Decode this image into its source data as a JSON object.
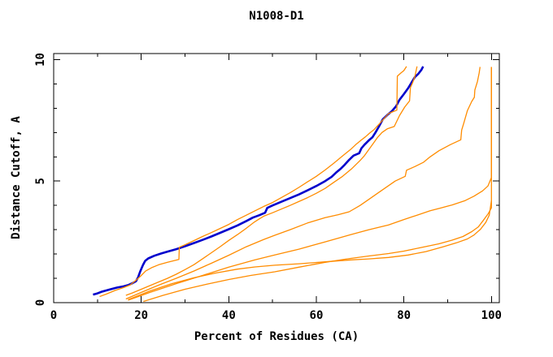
{
  "title": "N1008-D1",
  "colors": {
    "background": "#ffffff",
    "axis": "#000000",
    "highlight_series": "#0000cc",
    "other_series": "#ff8c00"
  },
  "axes": {
    "x": {
      "label": "Percent of Residues (CA)",
      "major_ticks": [
        0,
        20,
        40,
        60,
        80,
        100
      ],
      "major_tick_labels": [
        "0",
        "20",
        "40",
        "60",
        "80",
        "100"
      ],
      "minor_ticks": [
        10,
        30,
        50,
        70,
        90
      ],
      "range": [
        0,
        101.8
      ]
    },
    "y": {
      "label": "Distance Cutoff, A",
      "major_ticks": [
        0,
        5,
        10
      ],
      "major_tick_labels": [
        "0",
        "5",
        "10"
      ],
      "minor_ticks": [
        1,
        2,
        3,
        4,
        6,
        7,
        8,
        9
      ],
      "range": [
        0,
        10.25
      ]
    }
  },
  "chart_data": {
    "type": "line",
    "title": "N1008-D1",
    "xlabel": "Percent of Residues (CA)",
    "ylabel": "Distance Cutoff, A",
    "xlim": [
      0,
      101.8
    ],
    "ylim": [
      0,
      10.25
    ],
    "grid": false,
    "legend": "none",
    "series": [
      {
        "id": "highlighted-model",
        "color": "#0000cc",
        "width": 2.6,
        "points": [
          [
            9,
            0.33
          ],
          [
            10,
            0.38
          ],
          [
            11,
            0.45
          ],
          [
            12,
            0.5
          ],
          [
            13,
            0.55
          ],
          [
            14.5,
            0.62
          ],
          [
            16,
            0.67
          ],
          [
            17,
            0.72
          ],
          [
            18,
            0.8
          ],
          [
            18.8,
            0.88
          ],
          [
            19.3,
            1.05
          ],
          [
            19.8,
            1.3
          ],
          [
            20.4,
            1.55
          ],
          [
            20.9,
            1.72
          ],
          [
            21.6,
            1.82
          ],
          [
            23,
            1.93
          ],
          [
            24.5,
            2.02
          ],
          [
            26,
            2.1
          ],
          [
            28,
            2.2
          ],
          [
            30,
            2.32
          ],
          [
            32,
            2.45
          ],
          [
            34,
            2.58
          ],
          [
            36,
            2.72
          ],
          [
            38,
            2.87
          ],
          [
            40,
            3.02
          ],
          [
            42,
            3.18
          ],
          [
            44,
            3.36
          ],
          [
            45.5,
            3.5
          ],
          [
            47,
            3.6
          ],
          [
            48.3,
            3.7
          ],
          [
            48.8,
            3.9
          ],
          [
            50,
            4.0
          ],
          [
            52,
            4.15
          ],
          [
            54,
            4.3
          ],
          [
            56,
            4.45
          ],
          [
            58,
            4.62
          ],
          [
            60,
            4.8
          ],
          [
            62,
            5.0
          ],
          [
            63.5,
            5.18
          ],
          [
            64.5,
            5.35
          ],
          [
            65.5,
            5.5
          ],
          [
            66.5,
            5.68
          ],
          [
            67.5,
            5.88
          ],
          [
            68.5,
            6.05
          ],
          [
            69.8,
            6.15
          ],
          [
            70.3,
            6.35
          ],
          [
            71,
            6.5
          ],
          [
            72,
            6.68
          ],
          [
            72.8,
            6.8
          ],
          [
            73.5,
            7.0
          ],
          [
            74.3,
            7.25
          ],
          [
            75.2,
            7.55
          ],
          [
            76.2,
            7.72
          ],
          [
            77.2,
            7.87
          ],
          [
            78.2,
            8.08
          ],
          [
            79,
            8.35
          ],
          [
            80,
            8.58
          ],
          [
            81,
            8.83
          ],
          [
            81.8,
            9.07
          ],
          [
            82.5,
            9.28
          ],
          [
            83.3,
            9.42
          ],
          [
            84,
            9.58
          ],
          [
            84.4,
            9.72
          ]
        ]
      },
      {
        "id": "model-2",
        "color": "#ff8c00",
        "width": 1.3,
        "points": [
          [
            10.5,
            0.25
          ],
          [
            12,
            0.35
          ],
          [
            14,
            0.5
          ],
          [
            16,
            0.62
          ],
          [
            17.5,
            0.73
          ],
          [
            19,
            0.95
          ],
          [
            20,
            1.12
          ],
          [
            21,
            1.3
          ],
          [
            22.5,
            1.45
          ],
          [
            24,
            1.56
          ],
          [
            26,
            1.66
          ],
          [
            28.6,
            1.78
          ],
          [
            28.7,
            2.28
          ],
          [
            30,
            2.38
          ],
          [
            32,
            2.55
          ],
          [
            34,
            2.72
          ],
          [
            36,
            2.88
          ],
          [
            38,
            3.05
          ],
          [
            40,
            3.22
          ],
          [
            42,
            3.42
          ],
          [
            44,
            3.6
          ],
          [
            46,
            3.78
          ],
          [
            48,
            3.96
          ],
          [
            50,
            4.12
          ],
          [
            52,
            4.32
          ],
          [
            54,
            4.52
          ],
          [
            56,
            4.74
          ],
          [
            58,
            4.97
          ],
          [
            60,
            5.2
          ],
          [
            62,
            5.46
          ],
          [
            64,
            5.74
          ],
          [
            66,
            6.04
          ],
          [
            67.8,
            6.3
          ],
          [
            69,
            6.5
          ],
          [
            70.2,
            6.68
          ],
          [
            71.2,
            6.82
          ],
          [
            72.2,
            6.98
          ],
          [
            73.2,
            7.12
          ],
          [
            74.2,
            7.32
          ],
          [
            75.2,
            7.52
          ],
          [
            76.5,
            7.78
          ],
          [
            77.5,
            7.86
          ],
          [
            78.4,
            7.92
          ],
          [
            78.5,
            9.32
          ],
          [
            79.3,
            9.45
          ],
          [
            80,
            9.55
          ],
          [
            80.6,
            9.72
          ]
        ]
      },
      {
        "id": "model-3",
        "color": "#ff8c00",
        "width": 1.3,
        "points": [
          [
            16.5,
            0.3
          ],
          [
            18,
            0.4
          ],
          [
            20,
            0.55
          ],
          [
            22,
            0.7
          ],
          [
            24,
            0.85
          ],
          [
            26,
            1.0
          ],
          [
            28,
            1.17
          ],
          [
            30,
            1.36
          ],
          [
            32,
            1.56
          ],
          [
            34,
            1.8
          ],
          [
            36,
            2.05
          ],
          [
            38,
            2.3
          ],
          [
            40,
            2.56
          ],
          [
            42,
            2.8
          ],
          [
            44,
            3.06
          ],
          [
            45.7,
            3.3
          ],
          [
            47,
            3.45
          ],
          [
            48,
            3.56
          ],
          [
            50,
            3.7
          ],
          [
            52,
            3.85
          ],
          [
            54,
            4.0
          ],
          [
            56,
            4.16
          ],
          [
            58,
            4.32
          ],
          [
            60,
            4.5
          ],
          [
            62,
            4.7
          ],
          [
            64,
            4.95
          ],
          [
            66,
            5.2
          ],
          [
            68,
            5.5
          ],
          [
            70,
            5.85
          ],
          [
            71,
            6.05
          ],
          [
            72,
            6.3
          ],
          [
            73,
            6.55
          ],
          [
            74,
            6.8
          ],
          [
            75,
            7.0
          ],
          [
            76.2,
            7.15
          ],
          [
            77.8,
            7.25
          ],
          [
            79,
            7.7
          ],
          [
            80.2,
            8.05
          ],
          [
            81.3,
            8.3
          ],
          [
            81.5,
            8.85
          ],
          [
            82,
            9.05
          ],
          [
            82.5,
            9.3
          ],
          [
            83,
            9.72
          ]
        ]
      },
      {
        "id": "model-4",
        "color": "#ff8c00",
        "width": 1.3,
        "points": [
          [
            16.5,
            0.15
          ],
          [
            20,
            0.42
          ],
          [
            24,
            0.72
          ],
          [
            28,
            1.0
          ],
          [
            32,
            1.3
          ],
          [
            36,
            1.62
          ],
          [
            40,
            1.95
          ],
          [
            44,
            2.3
          ],
          [
            48,
            2.6
          ],
          [
            50.5,
            2.77
          ],
          [
            54,
            3.0
          ],
          [
            58,
            3.28
          ],
          [
            62,
            3.5
          ],
          [
            65,
            3.62
          ],
          [
            67.5,
            3.74
          ],
          [
            70,
            4.0
          ],
          [
            72,
            4.25
          ],
          [
            74,
            4.5
          ],
          [
            76,
            4.75
          ],
          [
            78,
            5.0
          ],
          [
            80.3,
            5.2
          ],
          [
            80.6,
            5.45
          ],
          [
            82.5,
            5.6
          ],
          [
            84.5,
            5.78
          ],
          [
            86,
            6.0
          ],
          [
            88,
            6.25
          ],
          [
            90.6,
            6.5
          ],
          [
            93,
            6.7
          ],
          [
            93.2,
            7.1
          ],
          [
            93.7,
            7.4
          ],
          [
            94.5,
            7.9
          ],
          [
            95.5,
            8.28
          ],
          [
            96.1,
            8.45
          ],
          [
            96.2,
            8.75
          ],
          [
            96.8,
            9.1
          ],
          [
            97.2,
            9.45
          ],
          [
            97.4,
            9.7
          ]
        ]
      },
      {
        "id": "model-5",
        "color": "#ff8c00",
        "width": 1.3,
        "points": [
          [
            17,
            0.1
          ],
          [
            22,
            0.42
          ],
          [
            28,
            0.78
          ],
          [
            34,
            1.12
          ],
          [
            40,
            1.46
          ],
          [
            46,
            1.76
          ],
          [
            50.5,
            1.96
          ],
          [
            56,
            2.2
          ],
          [
            62,
            2.5
          ],
          [
            67.9,
            2.8
          ],
          [
            72,
            3.0
          ],
          [
            76.5,
            3.2
          ],
          [
            80,
            3.42
          ],
          [
            83,
            3.6
          ],
          [
            86,
            3.78
          ],
          [
            88.5,
            3.9
          ],
          [
            91,
            4.02
          ],
          [
            94,
            4.2
          ],
          [
            96,
            4.38
          ],
          [
            98,
            4.6
          ],
          [
            99.2,
            4.8
          ],
          [
            100,
            5.15
          ],
          [
            100,
            9.7
          ]
        ]
      },
      {
        "id": "model-6",
        "color": "#ff8c00",
        "width": 1.3,
        "points": [
          [
            20.5,
            0.05
          ],
          [
            25,
            0.3
          ],
          [
            30,
            0.55
          ],
          [
            35,
            0.76
          ],
          [
            40,
            0.95
          ],
          [
            45,
            1.12
          ],
          [
            50.5,
            1.27
          ],
          [
            56,
            1.46
          ],
          [
            62,
            1.66
          ],
          [
            67,
            1.8
          ],
          [
            72,
            1.92
          ],
          [
            76.5,
            2.02
          ],
          [
            80,
            2.12
          ],
          [
            84,
            2.27
          ],
          [
            88,
            2.42
          ],
          [
            91,
            2.57
          ],
          [
            93.5,
            2.72
          ],
          [
            95.5,
            2.92
          ],
          [
            97,
            3.12
          ],
          [
            98.2,
            3.4
          ],
          [
            99.3,
            3.67
          ],
          [
            100,
            3.9
          ],
          [
            100,
            9.7
          ]
        ]
      },
      {
        "id": "model-7",
        "color": "#ff8c00",
        "width": 1.3,
        "points": [
          [
            17,
            0.12
          ],
          [
            22,
            0.48
          ],
          [
            27,
            0.78
          ],
          [
            32,
            1.02
          ],
          [
            37,
            1.22
          ],
          [
            42,
            1.38
          ],
          [
            46,
            1.47
          ],
          [
            50.5,
            1.54
          ],
          [
            56,
            1.6
          ],
          [
            62,
            1.68
          ],
          [
            68,
            1.76
          ],
          [
            72,
            1.8
          ],
          [
            76.5,
            1.86
          ],
          [
            81,
            1.96
          ],
          [
            85,
            2.1
          ],
          [
            89,
            2.3
          ],
          [
            92,
            2.46
          ],
          [
            94.5,
            2.62
          ],
          [
            96,
            2.78
          ],
          [
            97.5,
            3.02
          ],
          [
            98.7,
            3.3
          ],
          [
            99.5,
            3.6
          ],
          [
            100,
            4.2
          ]
        ]
      }
    ]
  }
}
